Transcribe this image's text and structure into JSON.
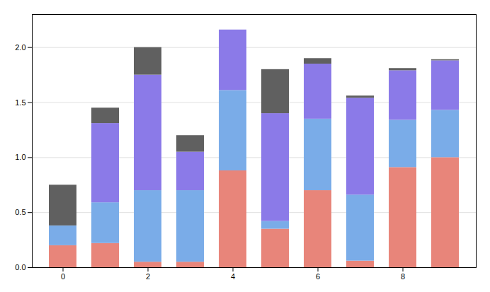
{
  "chart_data": {
    "type": "bar",
    "stacked": true,
    "categories": [
      0,
      1,
      2,
      3,
      4,
      5,
      6,
      7,
      8,
      9
    ],
    "series": [
      {
        "color": "#e8857a",
        "values": [
          0.2,
          0.22,
          0.05,
          0.05,
          0.88,
          0.35,
          0.7,
          0.06,
          0.91,
          1.0
        ]
      },
      {
        "color": "#7aace8",
        "values": [
          0.18,
          0.37,
          0.65,
          0.65,
          0.73,
          0.07,
          0.65,
          0.6,
          0.43,
          0.43
        ]
      },
      {
        "color": "#8b7ae8",
        "values": [
          0.0,
          0.72,
          1.05,
          0.35,
          0.55,
          0.98,
          0.5,
          0.88,
          0.45,
          0.45
        ]
      },
      {
        "color": "#606060",
        "values": [
          0.37,
          0.14,
          0.25,
          0.15,
          0.0,
          0.4,
          0.05,
          0.02,
          0.02,
          0.01
        ]
      }
    ],
    "xticks": [
      0,
      2,
      4,
      6,
      8
    ],
    "ylim": [
      0,
      2.3
    ],
    "yticks": [
      0,
      0.5,
      1,
      1.5,
      2
    ],
    "grid": true
  }
}
